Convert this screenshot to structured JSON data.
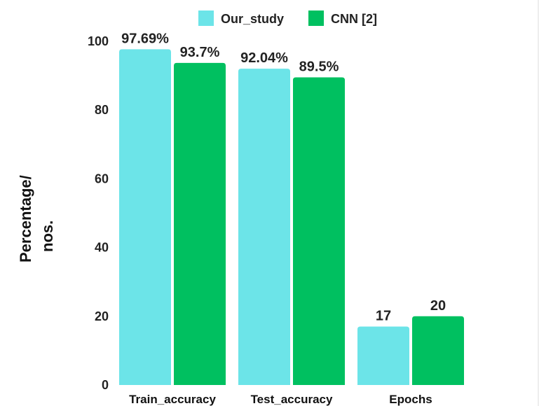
{
  "chart_data": {
    "type": "bar",
    "categories": [
      "Train_accuracy",
      "Test_accuracy",
      "Epochs"
    ],
    "series": [
      {
        "name": "Our_study",
        "color": "#6ce4e8",
        "values": [
          97.69,
          92.04,
          17
        ],
        "labels": [
          "97.69%",
          "92.04%",
          "17"
        ]
      },
      {
        "name": "CNN [2]",
        "color": "#00c060",
        "values": [
          93.7,
          89.5,
          20
        ],
        "labels": [
          "93.7%",
          "89.5%",
          "20"
        ]
      }
    ],
    "title": "",
    "xlabel": "",
    "ylabel": [
      "Percentage/",
      "nos."
    ],
    "ylim": [
      0,
      100
    ],
    "yticks": [
      0,
      20,
      40,
      60,
      80,
      100
    ],
    "grid": false,
    "legend_position": "top-center"
  }
}
